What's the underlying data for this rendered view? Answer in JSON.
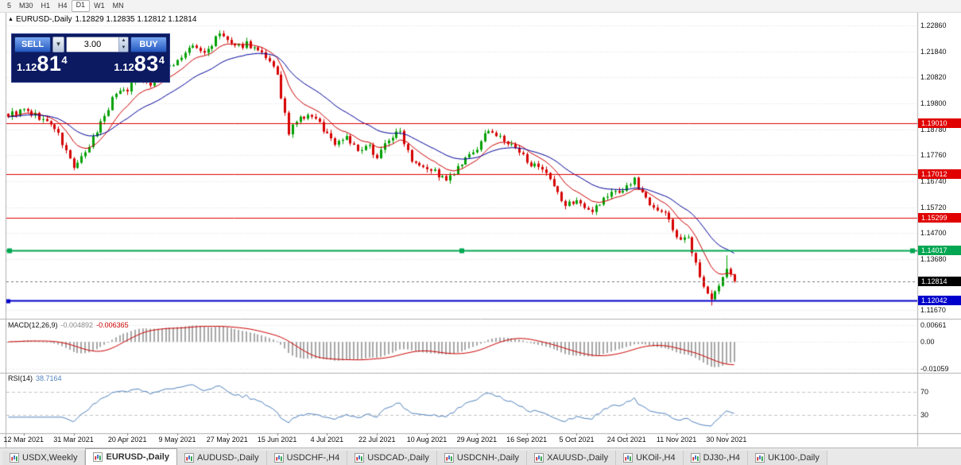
{
  "toolbar": {
    "timeframes": [
      "5",
      "M30",
      "H1",
      "H4",
      "D1",
      "W1",
      "MN"
    ],
    "active": "D1"
  },
  "quote_header": {
    "marker": "▲",
    "symbol": "EURUSD-,Daily",
    "ohlc": "1.12829 1.12835 1.12812 1.12814"
  },
  "trade_panel": {
    "sell_label": "SELL",
    "buy_label": "BUY",
    "volume": "3.00",
    "bid": {
      "prefix": "1.12",
      "big": "81",
      "pip": "4"
    },
    "ask": {
      "prefix": "1.12",
      "big": "83",
      "pip": "4"
    }
  },
  "price_axis": {
    "labels": [
      {
        "text": "1.22860",
        "value": 1.2286
      },
      {
        "text": "1.21840",
        "value": 1.2184
      },
      {
        "text": "1.20820",
        "value": 1.2082
      },
      {
        "text": "1.19800",
        "value": 1.198
      },
      {
        "text": "1.18780",
        "value": 1.1878
      },
      {
        "text": "1.17760",
        "value": 1.1776
      },
      {
        "text": "1.16740",
        "value": 1.1674
      },
      {
        "text": "1.15720",
        "value": 1.1572
      },
      {
        "text": "1.14700",
        "value": 1.147
      },
      {
        "text": "1.13680",
        "value": 1.1368
      },
      {
        "text": "1.11670",
        "value": 1.1167
      }
    ],
    "badges": [
      {
        "text": "1.19010",
        "value": 1.1901,
        "color": "#e00000"
      },
      {
        "text": "1.17012",
        "value": 1.17012,
        "color": "#e00000"
      },
      {
        "text": "1.15299",
        "value": 1.15299,
        "color": "#e00000"
      },
      {
        "text": "1.14017",
        "value": 1.14017,
        "color": "#00a651"
      },
      {
        "text": "1.12814",
        "value": 1.12814,
        "color": "#000000"
      },
      {
        "text": "1.12042",
        "value": 1.12042,
        "color": "#0000cc"
      }
    ]
  },
  "indicators": {
    "macd": {
      "title": "MACD(12,26,9)",
      "main_value": "-0.004892",
      "signal_value": "-0.006365",
      "axis_labels": [
        {
          "text": "0.00661",
          "value": 0.00661
        },
        {
          "text": "0.00",
          "value": 0
        },
        {
          "text": "-0.01059",
          "value": -0.01059
        }
      ]
    },
    "rsi": {
      "title": "RSI(14)",
      "value": "38.7164",
      "levels": [
        {
          "text": "70",
          "value": 70
        },
        {
          "text": "30",
          "value": 30
        }
      ]
    }
  },
  "date_axis": {
    "labels": [
      "12 Mar 2021",
      "31 Mar 2021",
      "20 Apr 2021",
      "9 May 2021",
      "27 May 2021",
      "15 Jun 2021",
      "4 Jul 2021",
      "22 Jul 2021",
      "10 Aug 2021",
      "29 Aug 2021",
      "16 Sep 2021",
      "5 Oct 2021",
      "24 Oct 2021",
      "11 Nov 2021",
      "30 Nov 2021"
    ]
  },
  "tabs": {
    "items": [
      {
        "label": "USDX,Weekly",
        "active": false
      },
      {
        "label": "EURUSD-,Daily",
        "active": true
      },
      {
        "label": "AUDUSD-,Daily",
        "active": false
      },
      {
        "label": "USDCHF-,H4",
        "active": false
      },
      {
        "label": "USDCAD-,Daily",
        "active": false
      },
      {
        "label": "USDCNH-,Daily",
        "active": false
      },
      {
        "label": "XAUUSD-,Daily",
        "active": false
      },
      {
        "label": "UKOil-,H4",
        "active": false
      },
      {
        "label": "DJ30-,H4",
        "active": false
      },
      {
        "label": "UK100-,Daily",
        "active": false
      }
    ]
  },
  "chart_data": {
    "type": "candlestick",
    "symbol": "EURUSD",
    "period": "Daily",
    "ohlc_display": {
      "open": 1.12829,
      "high": 1.12835,
      "low": 1.12812,
      "close": 1.12814
    },
    "bars": 190,
    "price_range": [
      1.114,
      1.233
    ],
    "seed": 9,
    "noise": 0.0013,
    "close_waypoints": [
      [
        0,
        1.1935
      ],
      [
        4,
        1.1952
      ],
      [
        8,
        1.1925
      ],
      [
        12,
        1.1885
      ],
      [
        15,
        1.179
      ],
      [
        17,
        1.173
      ],
      [
        20,
        1.1778
      ],
      [
        24,
        1.1905
      ],
      [
        28,
        1.2025
      ],
      [
        31,
        1.2038
      ],
      [
        34,
        1.209
      ],
      [
        37,
        1.2055
      ],
      [
        40,
        1.2105
      ],
      [
        44,
        1.215
      ],
      [
        48,
        1.2205
      ],
      [
        51,
        1.2175
      ],
      [
        55,
        1.2252
      ],
      [
        57,
        1.2228
      ],
      [
        59,
        1.2195
      ],
      [
        62,
        1.2218
      ],
      [
        65,
        1.2185
      ],
      [
        68,
        1.2135
      ],
      [
        70,
        1.21
      ],
      [
        71,
        1.1995
      ],
      [
        73,
        1.1868
      ],
      [
        76,
        1.192
      ],
      [
        79,
        1.1932
      ],
      [
        82,
        1.188
      ],
      [
        85,
        1.1822
      ],
      [
        88,
        1.1852
      ],
      [
        91,
        1.1788
      ],
      [
        94,
        1.1808
      ],
      [
        96,
        1.1772
      ],
      [
        99,
        1.1842
      ],
      [
        102,
        1.1868
      ],
      [
        105,
        1.1762
      ],
      [
        108,
        1.1738
      ],
      [
        111,
        1.1712
      ],
      [
        114,
        1.1672
      ],
      [
        117,
        1.1722
      ],
      [
        120,
        1.1772
      ],
      [
        123,
        1.182
      ],
      [
        125,
        1.1882
      ],
      [
        128,
        1.1842
      ],
      [
        131,
        1.1812
      ],
      [
        134,
        1.1772
      ],
      [
        137,
        1.1732
      ],
      [
        140,
        1.1698
      ],
      [
        143,
        1.1622
      ],
      [
        145,
        1.1578
      ],
      [
        148,
        1.1602
      ],
      [
        151,
        1.1552
      ],
      [
        154,
        1.1592
      ],
      [
        157,
        1.1628
      ],
      [
        160,
        1.1642
      ],
      [
        163,
        1.1678
      ],
      [
        166,
        1.1605
      ],
      [
        169,
        1.1568
      ],
      [
        172,
        1.1525
      ],
      [
        174,
        1.1455
      ],
      [
        177,
        1.1442
      ],
      [
        180,
        1.1295
      ],
      [
        183,
        1.1218
      ],
      [
        185,
        1.1258
      ],
      [
        187,
        1.1332
      ],
      [
        188,
        1.1305
      ],
      [
        189,
        1.12814
      ]
    ],
    "forced_extremes": {
      "high_bar": 56,
      "high": 1.2266,
      "low_bar": 183,
      "low": 1.1186,
      "spike_bar": 187,
      "spike_high": 1.1383
    },
    "current_price": 1.12814,
    "horizontal_lines": [
      {
        "value": 1.1901,
        "color": "#e00000",
        "width": 1,
        "handles": "none"
      },
      {
        "value": 1.17012,
        "color": "#e00000",
        "width": 1,
        "handles": "none"
      },
      {
        "value": 1.15299,
        "color": "#e00000",
        "width": 1,
        "handles": "none"
      },
      {
        "value": 1.14017,
        "color": "#00a651",
        "width": 2,
        "handles": "all"
      },
      {
        "value": 1.12042,
        "color": "#0000cc",
        "width": 2,
        "handles": "left"
      }
    ],
    "moving_averages": [
      {
        "type": "ema",
        "period": 10,
        "color": "#cc0000"
      },
      {
        "type": "ema",
        "period": 25,
        "color": "#000099"
      }
    ],
    "macd": {
      "fast": 12,
      "slow": 26,
      "signal_period": 9,
      "display_range": [
        -0.0116,
        0.0082
      ],
      "histogram_color": "#a8a8a8",
      "signal_color": "#cc0000",
      "last_main": -0.004892,
      "last_signal": -0.006365
    },
    "rsi": {
      "period": 14,
      "color": "#4f81bd",
      "levels": [
        70,
        30
      ],
      "range": [
        0,
        100
      ],
      "last": 38.7164
    },
    "date_label_bars": [
      4,
      17,
      31,
      44,
      57,
      70,
      83,
      96,
      109,
      122,
      135,
      148,
      161,
      174,
      187
    ],
    "candle_up_color": "#00a000",
    "candle_down_color": "#d60000",
    "grid_color": "#dcdcdc"
  }
}
